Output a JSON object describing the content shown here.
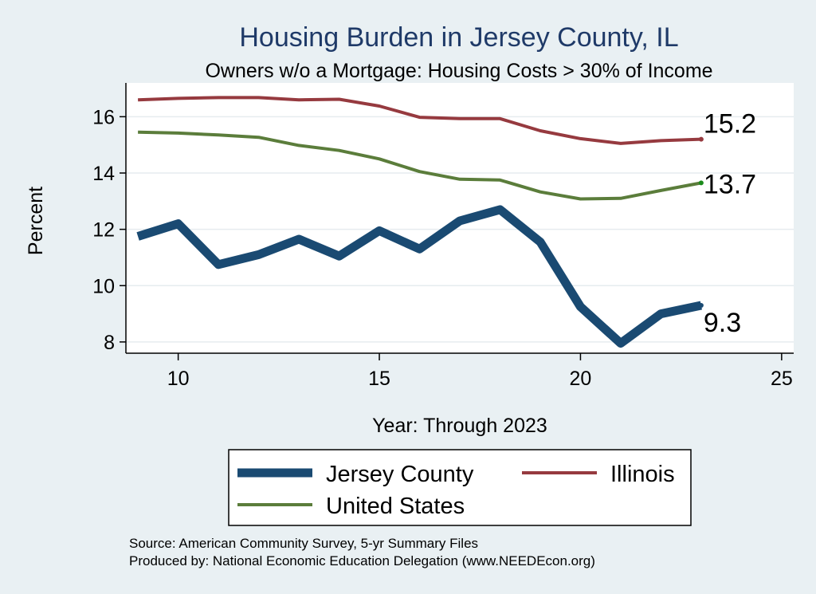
{
  "chart_data": {
    "type": "line",
    "title": "Housing Burden in Jersey County, IL",
    "subtitle": "Owners w/o a Mortgage: Housing Costs > 30% of Income",
    "xlabel": "Year: Through 2023",
    "ylabel": "Percent",
    "xlim": [
      8.7,
      25.3
    ],
    "ylim": [
      7.6,
      17.2
    ],
    "xticks": [
      10,
      15,
      20,
      25
    ],
    "yticks": [
      8,
      10,
      12,
      14,
      16
    ],
    "grid": true,
    "legend": "bottom",
    "series": [
      {
        "name": "Jersey County",
        "color": "#1a4a72",
        "x": [
          9,
          10,
          11,
          12,
          13,
          14,
          15,
          16,
          17,
          18,
          19,
          20,
          21,
          22,
          23
        ],
        "values": [
          11.75,
          12.2,
          10.75,
          11.1,
          11.65,
          11.05,
          11.95,
          11.3,
          12.3,
          12.7,
          11.55,
          9.25,
          7.95,
          9.0,
          9.3
        ],
        "end_label": "9.3"
      },
      {
        "name": "Illinois",
        "color": "#963a3f",
        "x": [
          9,
          10,
          11,
          12,
          13,
          14,
          15,
          16,
          17,
          18,
          19,
          20,
          21,
          22,
          23
        ],
        "values": [
          16.6,
          16.65,
          16.68,
          16.68,
          16.6,
          16.62,
          16.38,
          15.98,
          15.93,
          15.93,
          15.5,
          15.22,
          15.05,
          15.15,
          15.2
        ],
        "end_label": "15.2"
      },
      {
        "name": "United States",
        "color": "#5b7d3b",
        "x": [
          9,
          10,
          11,
          12,
          13,
          14,
          15,
          16,
          17,
          18,
          19,
          20,
          21,
          22,
          23
        ],
        "values": [
          15.45,
          15.42,
          15.35,
          15.27,
          14.98,
          14.8,
          14.5,
          14.05,
          13.78,
          13.75,
          13.33,
          13.08,
          13.1,
          13.38,
          13.65
        ],
        "end_label": "13.7"
      }
    ],
    "source_lines": [
      "Source: American Community Survey, 5-yr Summary Files",
      "Produced by: National Economic Education Delegation (www.NEEDEcon.org)"
    ]
  }
}
